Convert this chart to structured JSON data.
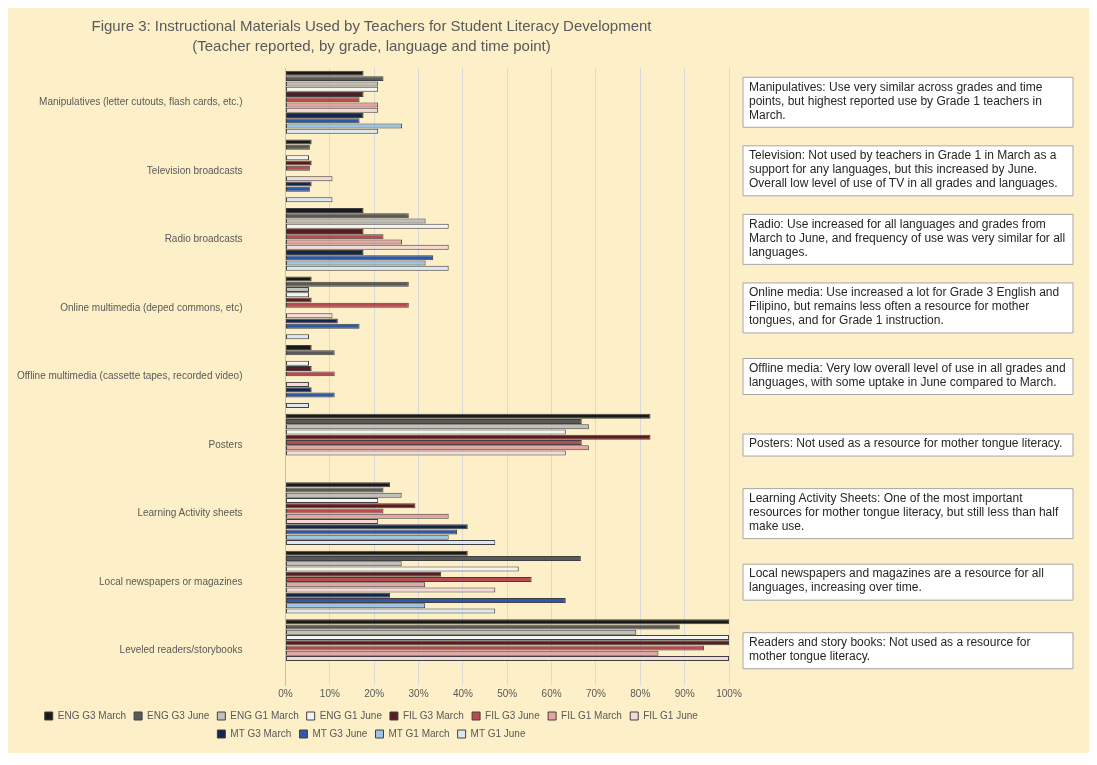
{
  "chart_data": {
    "type": "bar",
    "orientation": "horizontal",
    "title": "Figure 3: Instructional Materials Used by Teachers for Student Literacy Development",
    "subtitle": "(Teacher reported, by grade, language and time point)",
    "categories": [
      "Manipulatives (letter cutouts, flash cards, etc.)",
      "Television broadcasts",
      "Radio broadcasts",
      "Online multimedia (deped commons, etc)",
      "Offline multimedia (cassette tapes, recorded video)",
      "Posters",
      "Learning Activity sheets",
      "Local newspapers or magazines",
      "Leveled readers/storybooks"
    ],
    "series": [
      {
        "name": "ENG G3 March",
        "color": "#1a1a1a",
        "values": [
          17.6,
          5.9,
          17.6,
          5.9,
          5.9,
          82.3,
          23.6,
          41.1,
          100
        ]
      },
      {
        "name": "ENG G3 June",
        "color": "#595959",
        "values": [
          22.1,
          5.5,
          27.8,
          27.8,
          11.1,
          66.8,
          22.1,
          66.6,
          88.9
        ]
      },
      {
        "name": "ENG G1 March",
        "color": "#bfbfbf",
        "values": [
          20.9,
          0,
          31.6,
          5.3,
          0,
          68.4,
          26.2,
          26.2,
          79.1
        ]
      },
      {
        "name": "ENG G1 June",
        "color": "#f4f4f4",
        "values": [
          20.9,
          5.3,
          36.8,
          5.3,
          5.3,
          63.2,
          20.9,
          52.6,
          100
        ]
      },
      {
        "name": "FIL G3 March",
        "color": "#5c1a22",
        "values": [
          17.6,
          5.9,
          17.6,
          5.9,
          5.9,
          82.3,
          29.3,
          35.1,
          100
        ]
      },
      {
        "name": "FIL G3 June",
        "color": "#b84a52",
        "values": [
          16.7,
          5.5,
          22.1,
          27.8,
          11.1,
          66.8,
          22.1,
          55.5,
          94.4
        ]
      },
      {
        "name": "FIL G1 March",
        "color": "#e6a3a6",
        "values": [
          20.9,
          0,
          26.3,
          0,
          0,
          68.4,
          36.8,
          31.5,
          84.1
        ]
      },
      {
        "name": "FIL G1 June",
        "color": "#f5d8d8",
        "values": [
          20.9,
          10.6,
          36.8,
          10.6,
          5.3,
          63.2,
          20.9,
          47.3,
          100
        ]
      },
      {
        "name": "MT G3 March",
        "color": "#14254f",
        "values": [
          17.6,
          5.9,
          17.6,
          11.8,
          5.9,
          0,
          41.1,
          23.6,
          0
        ]
      },
      {
        "name": "MT G3 June",
        "color": "#2e58a8",
        "values": [
          16.7,
          5.5,
          33.3,
          16.7,
          11.1,
          0,
          38.7,
          63.2,
          0
        ]
      },
      {
        "name": "MT G1 March",
        "color": "#9dc3e6",
        "values": [
          26.3,
          0,
          31.6,
          0,
          0,
          0,
          36.8,
          31.5,
          0
        ]
      },
      {
        "name": "MT G1 June",
        "color": "#dde7f3",
        "values": [
          20.9,
          10.6,
          36.8,
          5.3,
          5.3,
          0,
          47.3,
          47.3,
          0
        ]
      }
    ],
    "xlim": [
      0,
      100
    ],
    "xticks": [
      {
        "value": 0,
        "label": "0%"
      },
      {
        "value": 10,
        "label": "10%"
      },
      {
        "value": 20,
        "label": "20%"
      },
      {
        "value": 30,
        "label": "30%"
      },
      {
        "value": 40,
        "label": "40%"
      },
      {
        "value": 50,
        "label": "50%"
      },
      {
        "value": 60,
        "label": "60%"
      },
      {
        "value": 70,
        "label": "70%"
      },
      {
        "value": 80,
        "label": "80%"
      },
      {
        "value": 90,
        "label": "90%"
      },
      {
        "value": 100,
        "label": "100%"
      }
    ],
    "grid": "x",
    "legend": "bottom",
    "annotations": [
      "Manipulatives: Use very similar across grades and time points, but highest reported use by Grade 1 teachers in March.",
      "Television: Not used by teachers in Grade 1 in March as a support for any languages, but this increased by June. Overall low level of use of TV in all grades and languages.",
      "Radio: Use increased for all languages and grades from March to June, and frequency of use was very similar for all languages.",
      "Online media: Use increased a lot for Grade 3 English and Filipino, but remains less often a resource for mother tongues, and for Grade 1 instruction.",
      "Offline media: Very low overall level of use in all grades and languages, with some uptake in June compared to March.",
      "Posters: Not used as a resource for mother tongue literacy.",
      "Learning Activity Sheets: One of the most important resources for mother tongue literacy, but still less than half make use.",
      "Local newspapers and magazines are a resource for all languages, increasing over time.",
      "Readers and story books: Not used as a resource for mother tongue literacy."
    ]
  }
}
